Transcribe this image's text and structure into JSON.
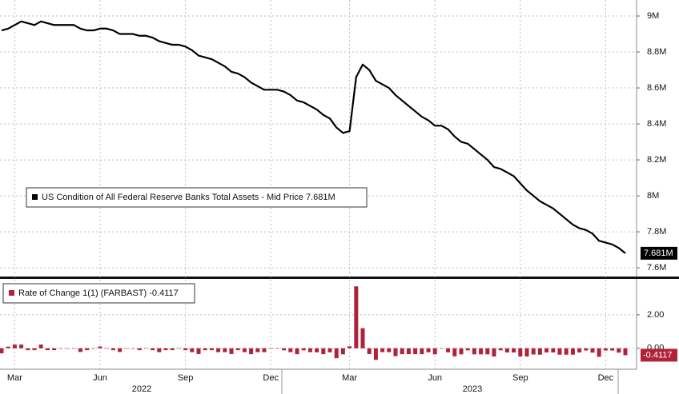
{
  "chart_data": [
    {
      "type": "line",
      "series": [
        {
          "name": "US Condition of All Federal Reserve Banks Total Assets - Mid Price 7.681M",
          "color": "#000000",
          "values": [
            8920000,
            8930000,
            8950000,
            8970000,
            8960000,
            8950000,
            8970000,
            8960000,
            8950000,
            8950000,
            8950000,
            8950000,
            8930000,
            8920000,
            8920000,
            8930000,
            8930000,
            8920000,
            8900000,
            8900000,
            8900000,
            8890000,
            8890000,
            8880000,
            8860000,
            8850000,
            8840000,
            8840000,
            8830000,
            8810000,
            8780000,
            8770000,
            8760000,
            8740000,
            8720000,
            8690000,
            8680000,
            8660000,
            8630000,
            8610000,
            8590000,
            8590000,
            8590000,
            8580000,
            8560000,
            8530000,
            8520000,
            8500000,
            8480000,
            8450000,
            8430000,
            8380000,
            8350000,
            8360000,
            8660000,
            8730000,
            8700000,
            8640000,
            8620000,
            8600000,
            8560000,
            8530000,
            8500000,
            8470000,
            8440000,
            8420000,
            8390000,
            8390000,
            8370000,
            8330000,
            8300000,
            8290000,
            8260000,
            8230000,
            8200000,
            8160000,
            8150000,
            8130000,
            8110000,
            8070000,
            8030000,
            8000000,
            7970000,
            7950000,
            7930000,
            7900000,
            7870000,
            7840000,
            7820000,
            7810000,
            7790000,
            7750000,
            7740000,
            7730000,
            7710000,
            7681000
          ]
        }
      ],
      "last_label": "7.681M",
      "ylim": [
        7556000,
        9089000
      ],
      "yticks": [
        {
          "value": 9000000,
          "label": "9M"
        },
        {
          "value": 8800000,
          "label": "8.8M"
        },
        {
          "value": 8600000,
          "label": "8.6M"
        },
        {
          "value": 8400000,
          "label": "8.4M"
        },
        {
          "value": 8200000,
          "label": "8.2M"
        },
        {
          "value": 8000000,
          "label": "8M"
        },
        {
          "value": 7800000,
          "label": "7.8M"
        },
        {
          "value": 7600000,
          "label": "7.6M"
        }
      ],
      "grid": true
    },
    {
      "type": "bar",
      "categories": [
        null,
        null,
        "Mar",
        null,
        null,
        null,
        null,
        null,
        null,
        null,
        null,
        null,
        null,
        null,
        null,
        "Jun",
        null,
        null,
        null,
        null,
        null,
        null,
        null,
        null,
        null,
        null,
        null,
        null,
        "Sep",
        null,
        null,
        null,
        null,
        null,
        null,
        null,
        null,
        null,
        null,
        null,
        null,
        "Dec",
        null,
        null,
        null,
        null,
        null,
        null,
        null,
        null,
        null,
        null,
        null,
        "Mar",
        null,
        null,
        null,
        null,
        null,
        null,
        null,
        null,
        null,
        null,
        null,
        null,
        "Jun",
        null,
        null,
        null,
        null,
        null,
        null,
        null,
        null,
        null,
        null,
        null,
        null,
        "Sep",
        null,
        null,
        null,
        null,
        null,
        null,
        null,
        null,
        null,
        null,
        null,
        null,
        "Dec",
        null,
        null,
        null
      ],
      "x_groups": [
        "2022",
        "2023"
      ],
      "series": [
        {
          "name": "Rate of Change 1(1) (FARBAST) -0.4117",
          "color": "#b0223a",
          "values": [
            -0.3,
            0.1,
            0.22,
            0.22,
            -0.11,
            -0.11,
            0.22,
            -0.11,
            -0.11,
            0,
            0,
            0,
            -0.22,
            -0.11,
            0,
            0.11,
            0,
            -0.11,
            -0.22,
            0,
            0,
            -0.11,
            0,
            -0.11,
            -0.23,
            -0.11,
            -0.11,
            0,
            -0.11,
            -0.23,
            -0.34,
            -0.11,
            -0.11,
            -0.23,
            -0.23,
            -0.34,
            -0.11,
            -0.23,
            -0.35,
            -0.23,
            -0.23,
            0,
            0,
            -0.12,
            -0.23,
            -0.35,
            -0.12,
            -0.23,
            -0.24,
            -0.35,
            -0.24,
            -0.59,
            -0.36,
            0.12,
            3.7,
            1.2,
            -0.34,
            -0.69,
            -0.23,
            -0.23,
            -0.47,
            -0.35,
            -0.35,
            -0.35,
            -0.35,
            -0.24,
            -0.36,
            0,
            -0.24,
            -0.48,
            -0.36,
            -0.12,
            -0.36,
            -0.36,
            -0.36,
            -0.49,
            -0.12,
            -0.25,
            -0.25,
            -0.49,
            -0.49,
            -0.37,
            -0.38,
            -0.25,
            -0.25,
            -0.38,
            -0.38,
            -0.38,
            -0.25,
            -0.13,
            -0.26,
            -0.51,
            -0.13,
            -0.13,
            -0.26,
            -0.4117
          ]
        }
      ],
      "ylim": [
        -1.25,
        4.0
      ],
      "yticks": [
        {
          "value": 2,
          "label": "2.00"
        },
        {
          "value": 0,
          "label": "0.00"
        }
      ],
      "grid": true
    }
  ]
}
